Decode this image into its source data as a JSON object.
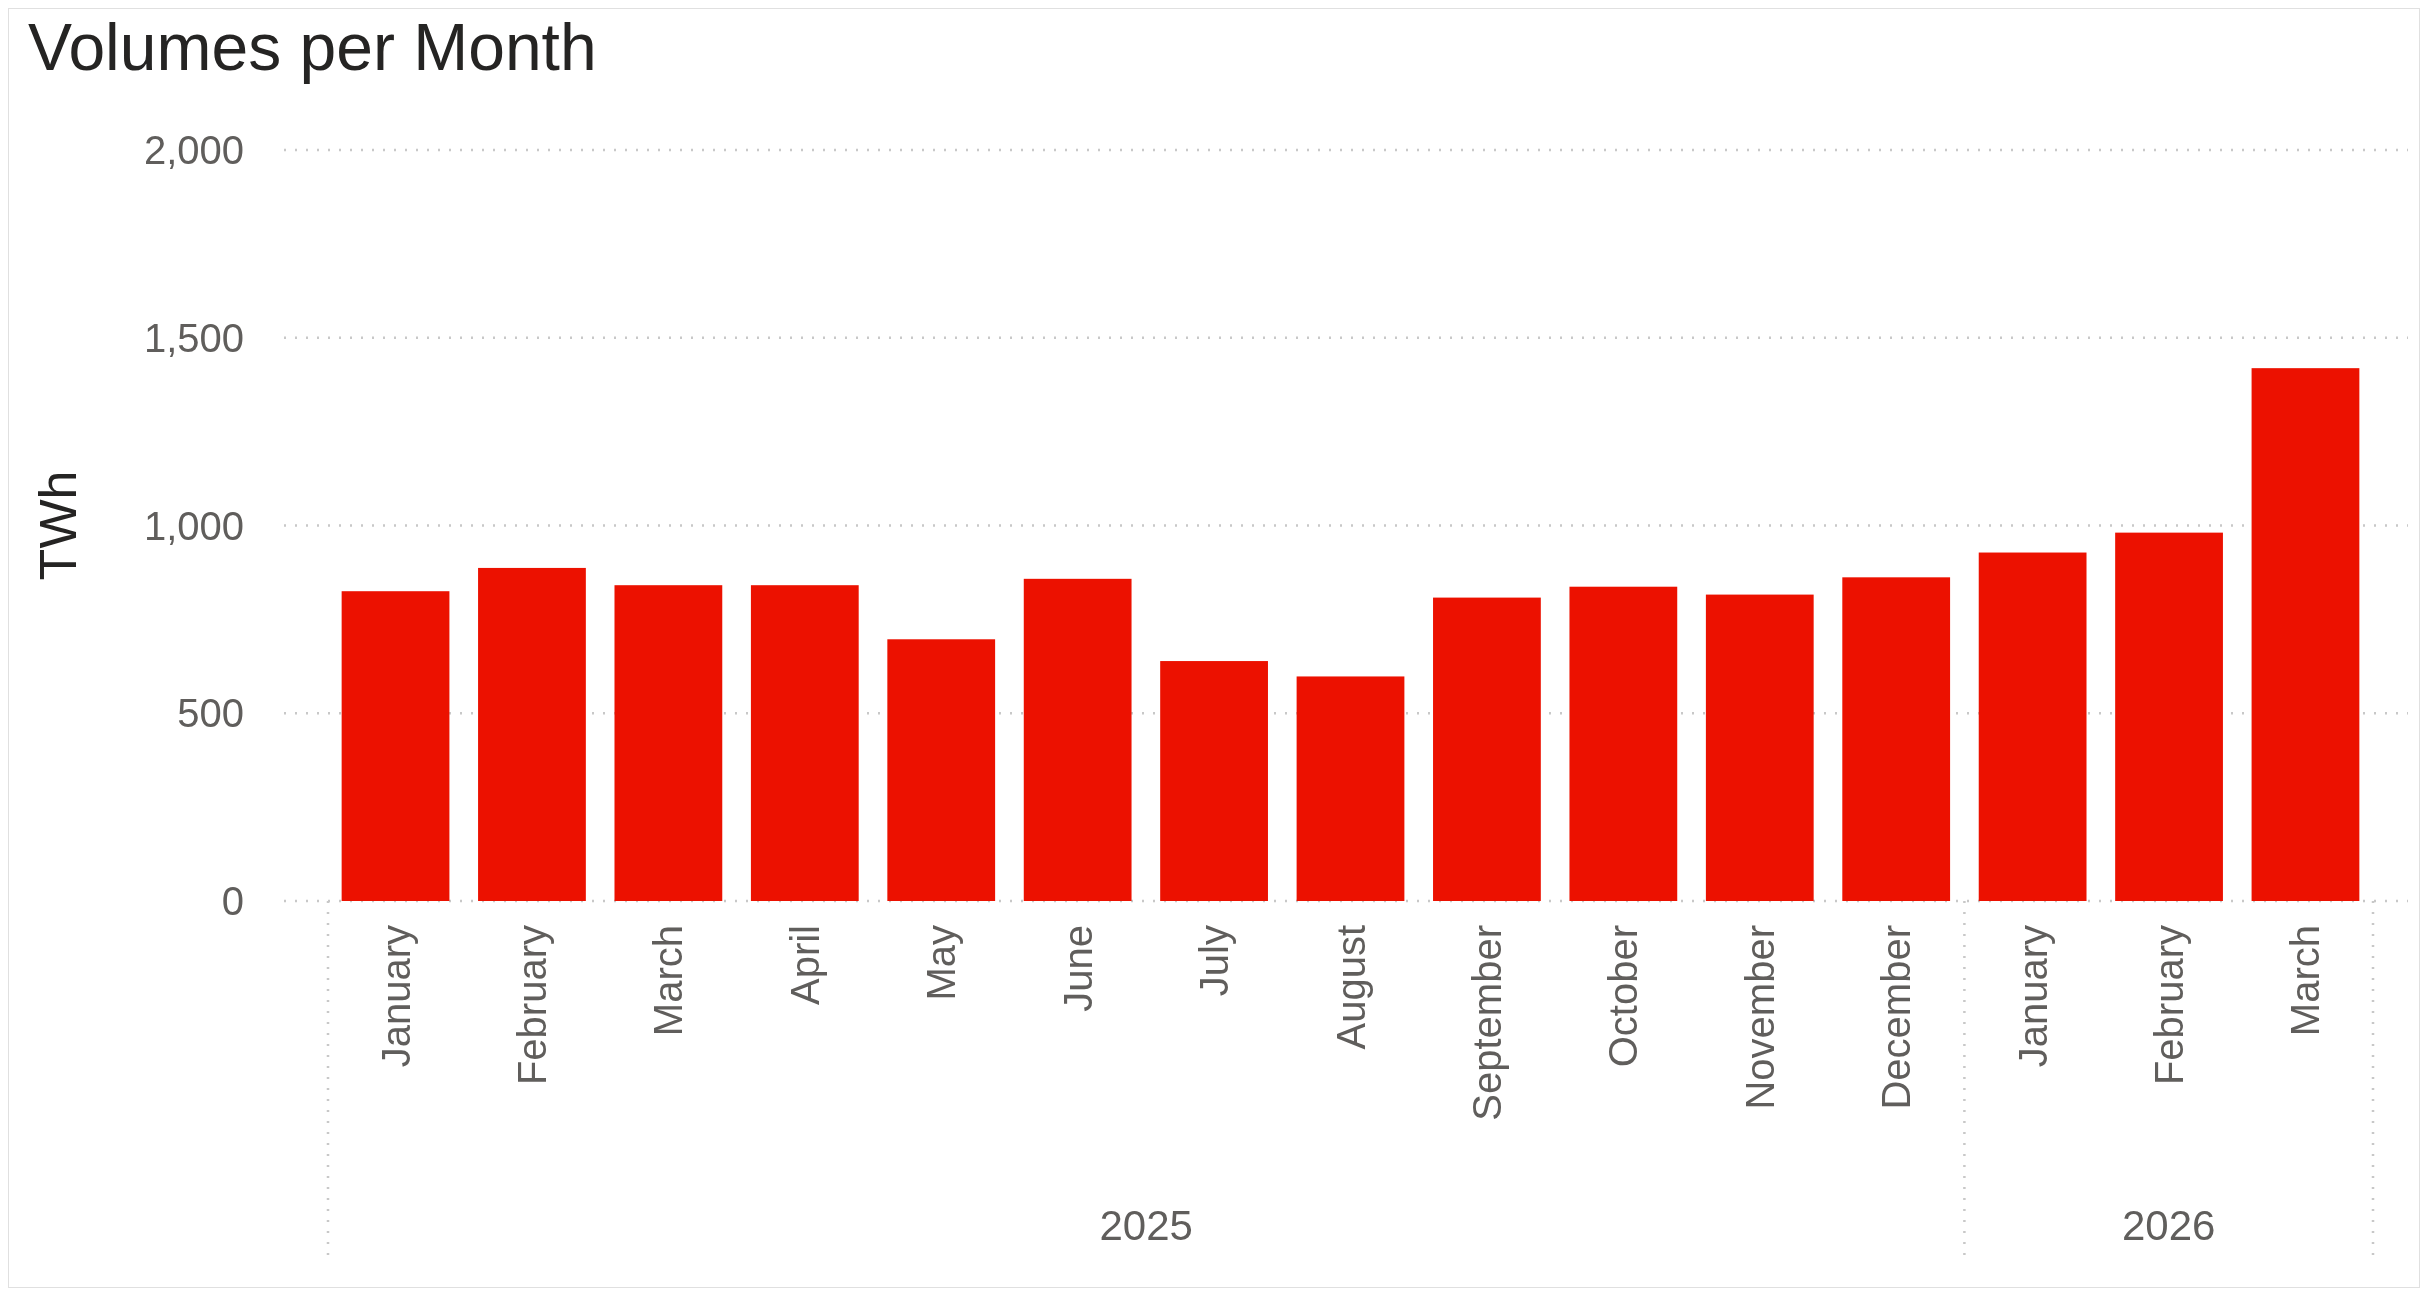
{
  "chart_data": {
    "type": "bar",
    "title": "Volumes per Month",
    "ylabel": "TWh",
    "categories": [
      "January",
      "February",
      "March",
      "April",
      "May",
      "June",
      "July",
      "August",
      "September",
      "October",
      "November",
      "December",
      "January",
      "February",
      "March"
    ],
    "values": [
      825,
      887,
      841,
      841,
      697,
      858,
      639,
      598,
      808,
      837,
      816,
      862,
      928,
      981,
      1419
    ],
    "color": "#ec1100",
    "ylim": [
      0,
      2000
    ],
    "yticks": [
      0,
      {
        "value": 500,
        "label": "500"
      },
      {
        "value": 1000,
        "label": "1,000"
      },
      {
        "value": 1500,
        "label": "1,500"
      },
      {
        "value": 2000,
        "label": "2,000"
      }
    ],
    "grid": "y",
    "annotations": [
      "2025",
      "2026"
    ]
  }
}
